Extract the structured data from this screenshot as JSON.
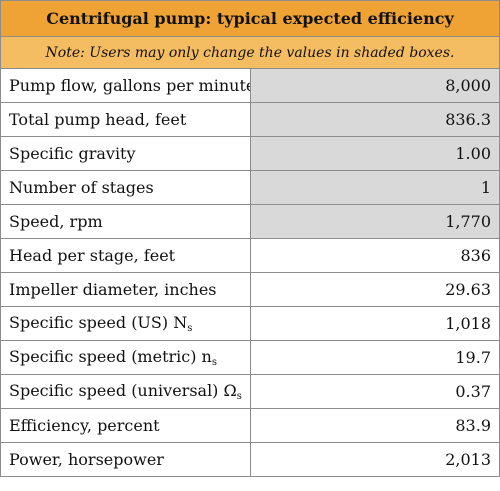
{
  "header": {
    "title": "Centrifugal pump: typical expected efficiency",
    "note": "Note: Users may only change the values in shaded boxes."
  },
  "table": {
    "rows": [
      {
        "label": "Pump flow, gallons per minute (gpm)",
        "value": "8,000",
        "shaded": true
      },
      {
        "label": "Total pump head, feet",
        "value": "836.3",
        "shaded": true
      },
      {
        "label": "Specific gravity",
        "value": "1.00",
        "shaded": true
      },
      {
        "label": "Number of stages",
        "value": "1",
        "shaded": true
      },
      {
        "label": "Speed, rpm",
        "value": "1,770",
        "shaded": true
      },
      {
        "label": "Head per stage, feet",
        "value": "836",
        "shaded": false
      },
      {
        "label": "Impeller diameter, inches",
        "value": "29.63",
        "shaded": false
      },
      {
        "label": "Specific speed (US) N",
        "sub": "s",
        "value": "1,018",
        "shaded": false
      },
      {
        "label": "Specific speed (metric) n",
        "sub": "s",
        "value": "19.7",
        "shaded": false
      },
      {
        "label": "Specific speed (universal) Ω",
        "sub": "s",
        "value": "0.37",
        "shaded": false
      },
      {
        "label": "Efficiency, percent",
        "value": "83.9",
        "shaded": false
      },
      {
        "label": "Power, horsepower",
        "value": "2,013",
        "shaded": false
      }
    ]
  }
}
